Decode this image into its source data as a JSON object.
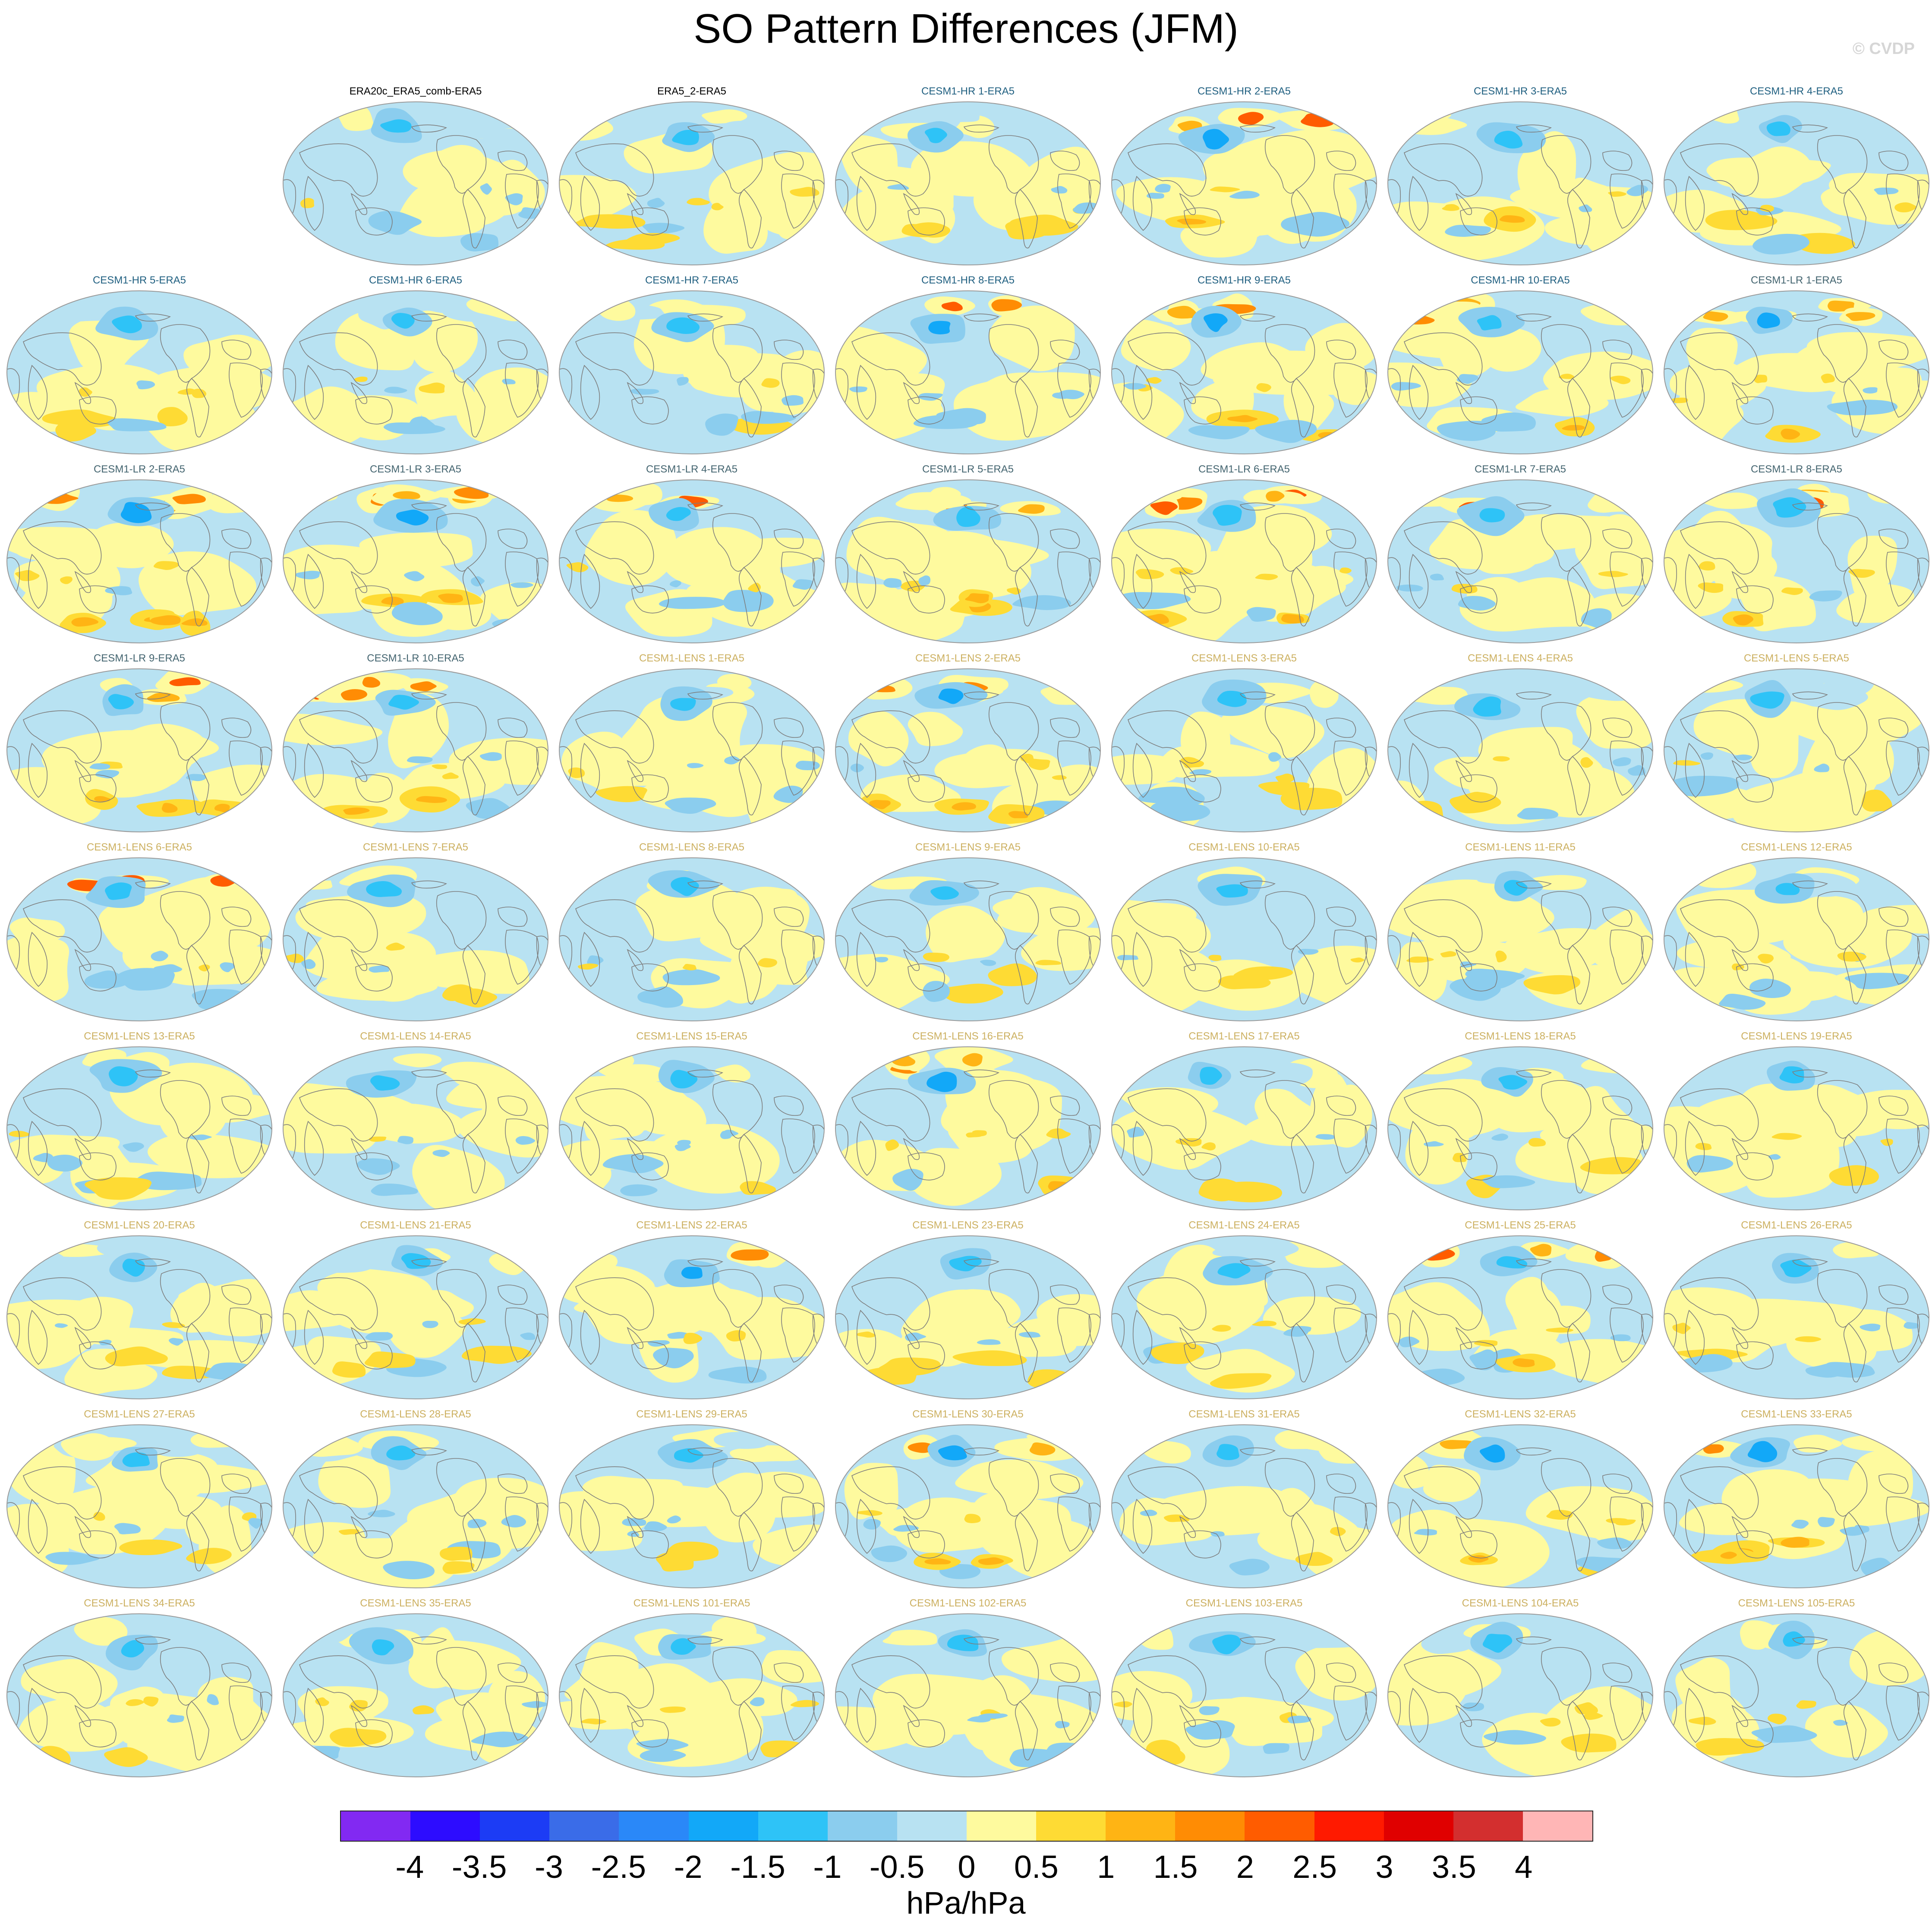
{
  "title": "SO Pattern Differences (JFM)",
  "watermark": "© CVDP",
  "panel_groups": {
    "observations": {
      "title_color": "#000000"
    },
    "CESM1-HR": {
      "title_color": "#1f5f80"
    },
    "CESM1-LR": {
      "title_color": "#43646f"
    },
    "CESM1-LENS": {
      "title_color": "#ccb060"
    }
  },
  "grid": {
    "columns": 7,
    "rows": 9,
    "first_row_start_column": 1
  },
  "panels": [
    {
      "label": "ERA20c_ERA5_comb-ERA5",
      "group": "observations"
    },
    {
      "label": "ERA5_2-ERA5",
      "group": "observations"
    },
    {
      "label": "CESM1-HR 1-ERA5",
      "group": "CESM1-HR"
    },
    {
      "label": "CESM1-HR 2-ERA5",
      "group": "CESM1-HR"
    },
    {
      "label": "CESM1-HR 3-ERA5",
      "group": "CESM1-HR"
    },
    {
      "label": "CESM1-HR 4-ERA5",
      "group": "CESM1-HR"
    },
    {
      "label": "CESM1-HR 5-ERA5",
      "group": "CESM1-HR"
    },
    {
      "label": "CESM1-HR 6-ERA5",
      "group": "CESM1-HR"
    },
    {
      "label": "CESM1-HR 7-ERA5",
      "group": "CESM1-HR"
    },
    {
      "label": "CESM1-HR 8-ERA5",
      "group": "CESM1-HR"
    },
    {
      "label": "CESM1-HR 9-ERA5",
      "group": "CESM1-HR"
    },
    {
      "label": "CESM1-HR 10-ERA5",
      "group": "CESM1-HR"
    },
    {
      "label": "CESM1-LR 1-ERA5",
      "group": "CESM1-LR"
    },
    {
      "label": "CESM1-LR 2-ERA5",
      "group": "CESM1-LR"
    },
    {
      "label": "CESM1-LR 3-ERA5",
      "group": "CESM1-LR"
    },
    {
      "label": "CESM1-LR 4-ERA5",
      "group": "CESM1-LR"
    },
    {
      "label": "CESM1-LR 5-ERA5",
      "group": "CESM1-LR"
    },
    {
      "label": "CESM1-LR 6-ERA5",
      "group": "CESM1-LR"
    },
    {
      "label": "CESM1-LR 7-ERA5",
      "group": "CESM1-LR"
    },
    {
      "label": "CESM1-LR 8-ERA5",
      "group": "CESM1-LR"
    },
    {
      "label": "CESM1-LR 9-ERA5",
      "group": "CESM1-LR"
    },
    {
      "label": "CESM1-LR 10-ERA5",
      "group": "CESM1-LR"
    },
    {
      "label": "CESM1-LENS 1-ERA5",
      "group": "CESM1-LENS"
    },
    {
      "label": "CESM1-LENS 2-ERA5",
      "group": "CESM1-LENS"
    },
    {
      "label": "CESM1-LENS 3-ERA5",
      "group": "CESM1-LENS"
    },
    {
      "label": "CESM1-LENS 4-ERA5",
      "group": "CESM1-LENS"
    },
    {
      "label": "CESM1-LENS 5-ERA5",
      "group": "CESM1-LENS"
    },
    {
      "label": "CESM1-LENS 6-ERA5",
      "group": "CESM1-LENS"
    },
    {
      "label": "CESM1-LENS 7-ERA5",
      "group": "CESM1-LENS"
    },
    {
      "label": "CESM1-LENS 8-ERA5",
      "group": "CESM1-LENS"
    },
    {
      "label": "CESM1-LENS 9-ERA5",
      "group": "CESM1-LENS"
    },
    {
      "label": "CESM1-LENS 10-ERA5",
      "group": "CESM1-LENS"
    },
    {
      "label": "CESM1-LENS 11-ERA5",
      "group": "CESM1-LENS"
    },
    {
      "label": "CESM1-LENS 12-ERA5",
      "group": "CESM1-LENS"
    },
    {
      "label": "CESM1-LENS 13-ERA5",
      "group": "CESM1-LENS"
    },
    {
      "label": "CESM1-LENS 14-ERA5",
      "group": "CESM1-LENS"
    },
    {
      "label": "CESM1-LENS 15-ERA5",
      "group": "CESM1-LENS"
    },
    {
      "label": "CESM1-LENS 16-ERA5",
      "group": "CESM1-LENS"
    },
    {
      "label": "CESM1-LENS 17-ERA5",
      "group": "CESM1-LENS"
    },
    {
      "label": "CESM1-LENS 18-ERA5",
      "group": "CESM1-LENS"
    },
    {
      "label": "CESM1-LENS 19-ERA5",
      "group": "CESM1-LENS"
    },
    {
      "label": "CESM1-LENS 20-ERA5",
      "group": "CESM1-LENS"
    },
    {
      "label": "CESM1-LENS 21-ERA5",
      "group": "CESM1-LENS"
    },
    {
      "label": "CESM1-LENS 22-ERA5",
      "group": "CESM1-LENS"
    },
    {
      "label": "CESM1-LENS 23-ERA5",
      "group": "CESM1-LENS"
    },
    {
      "label": "CESM1-LENS 24-ERA5",
      "group": "CESM1-LENS"
    },
    {
      "label": "CESM1-LENS 25-ERA5",
      "group": "CESM1-LENS"
    },
    {
      "label": "CESM1-LENS 26-ERA5",
      "group": "CESM1-LENS"
    },
    {
      "label": "CESM1-LENS 27-ERA5",
      "group": "CESM1-LENS"
    },
    {
      "label": "CESM1-LENS 28-ERA5",
      "group": "CESM1-LENS"
    },
    {
      "label": "CESM1-LENS 29-ERA5",
      "group": "CESM1-LENS"
    },
    {
      "label": "CESM1-LENS 30-ERA5",
      "group": "CESM1-LENS"
    },
    {
      "label": "CESM1-LENS 31-ERA5",
      "group": "CESM1-LENS"
    },
    {
      "label": "CESM1-LENS 32-ERA5",
      "group": "CESM1-LENS"
    },
    {
      "label": "CESM1-LENS 33-ERA5",
      "group": "CESM1-LENS"
    },
    {
      "label": "CESM1-LENS 34-ERA5",
      "group": "CESM1-LENS"
    },
    {
      "label": "CESM1-LENS 35-ERA5",
      "group": "CESM1-LENS"
    },
    {
      "label": "CESM1-LENS 101-ERA5",
      "group": "CESM1-LENS"
    },
    {
      "label": "CESM1-LENS 102-ERA5",
      "group": "CESM1-LENS"
    },
    {
      "label": "CESM1-LENS 103-ERA5",
      "group": "CESM1-LENS"
    },
    {
      "label": "CESM1-LENS 104-ERA5",
      "group": "CESM1-LENS"
    },
    {
      "label": "CESM1-LENS 105-ERA5",
      "group": "CESM1-LENS"
    }
  ],
  "colorbar": {
    "units": "hPa/hPa",
    "tick_labels": [
      "-4",
      "-3.5",
      "-3",
      "-2.5",
      "-2",
      "-1.5",
      "-1",
      "-0.5",
      "0",
      "0.5",
      "1",
      "1.5",
      "2",
      "2.5",
      "3",
      "3.5",
      "4"
    ],
    "colors": [
      "#8229f2",
      "#2d0cff",
      "#1c3cf5",
      "#3a6ce8",
      "#2a88f8",
      "#12a8f8",
      "#2ec3f7",
      "#8bcdee",
      "#b8e2f2",
      "#fefa9e",
      "#fedb34",
      "#ffb414",
      "#ff8c04",
      "#ff5c00",
      "#ff1a00",
      "#e00000",
      "#d32f2f",
      "#ffb6b6"
    ]
  },
  "map_style": {
    "ocean_base": "#b8e2f2",
    "weak_positive": "#fefa9e",
    "coast_color": "#7d7d7d",
    "border_color": "#9a9a9a"
  }
}
